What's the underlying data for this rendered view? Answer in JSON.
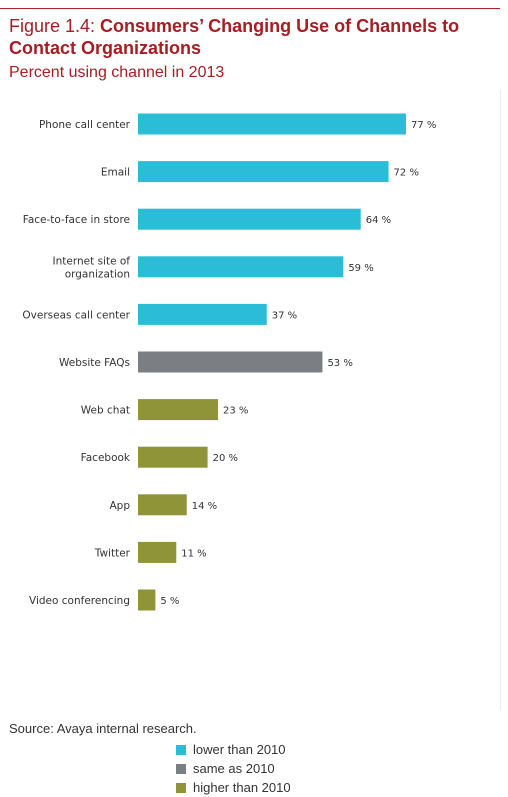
{
  "figure": {
    "label": "Figure 1.4: ",
    "title": "Consumers’ Changing Use of Channels to Contact Organizations",
    "subtitle": "Percent using channel in 2013",
    "source": "Source: Avaya internal research."
  },
  "colors": {
    "lower": "#2bbcd8",
    "same": "#7b7f83",
    "higher": "#8f9438",
    "title": "#a61d22"
  },
  "legend": [
    {
      "key": "lower",
      "label": "lower than 2010"
    },
    {
      "key": "same",
      "label": "same as 2010"
    },
    {
      "key": "higher",
      "label": "higher than 2010"
    }
  ],
  "chart_data": {
    "type": "bar",
    "orientation": "horizontal",
    "title": "Consumers’ Changing Use of Channels to Contact Organizations",
    "subtitle": "Percent using channel in 2013",
    "xlim": [
      0,
      100
    ],
    "grid": false,
    "legend_position": "bottom",
    "value_suffix": " %",
    "categories": [
      "Phone call center",
      "Email",
      "Face-to-face in store",
      "Internet site of organization",
      "Overseas call center",
      "Website FAQs",
      "Web chat",
      "Facebook",
      "App",
      "Twitter",
      "Video conferencing"
    ],
    "category_lines": [
      [
        "Phone call center"
      ],
      [
        "Email"
      ],
      [
        "Face-to-face in store"
      ],
      [
        "Internet site of",
        "organization"
      ],
      [
        "Overseas call center"
      ],
      [
        "Website FAQs"
      ],
      [
        "Web chat"
      ],
      [
        "Facebook"
      ],
      [
        "App"
      ],
      [
        "Twitter"
      ],
      [
        "Video conferencing"
      ]
    ],
    "values": [
      77,
      72,
      64,
      59,
      37,
      53,
      23,
      20,
      14,
      11,
      5
    ],
    "change_vs_2010": [
      "lower",
      "lower",
      "lower",
      "lower",
      "lower",
      "same",
      "higher",
      "higher",
      "higher",
      "higher",
      "higher"
    ]
  }
}
